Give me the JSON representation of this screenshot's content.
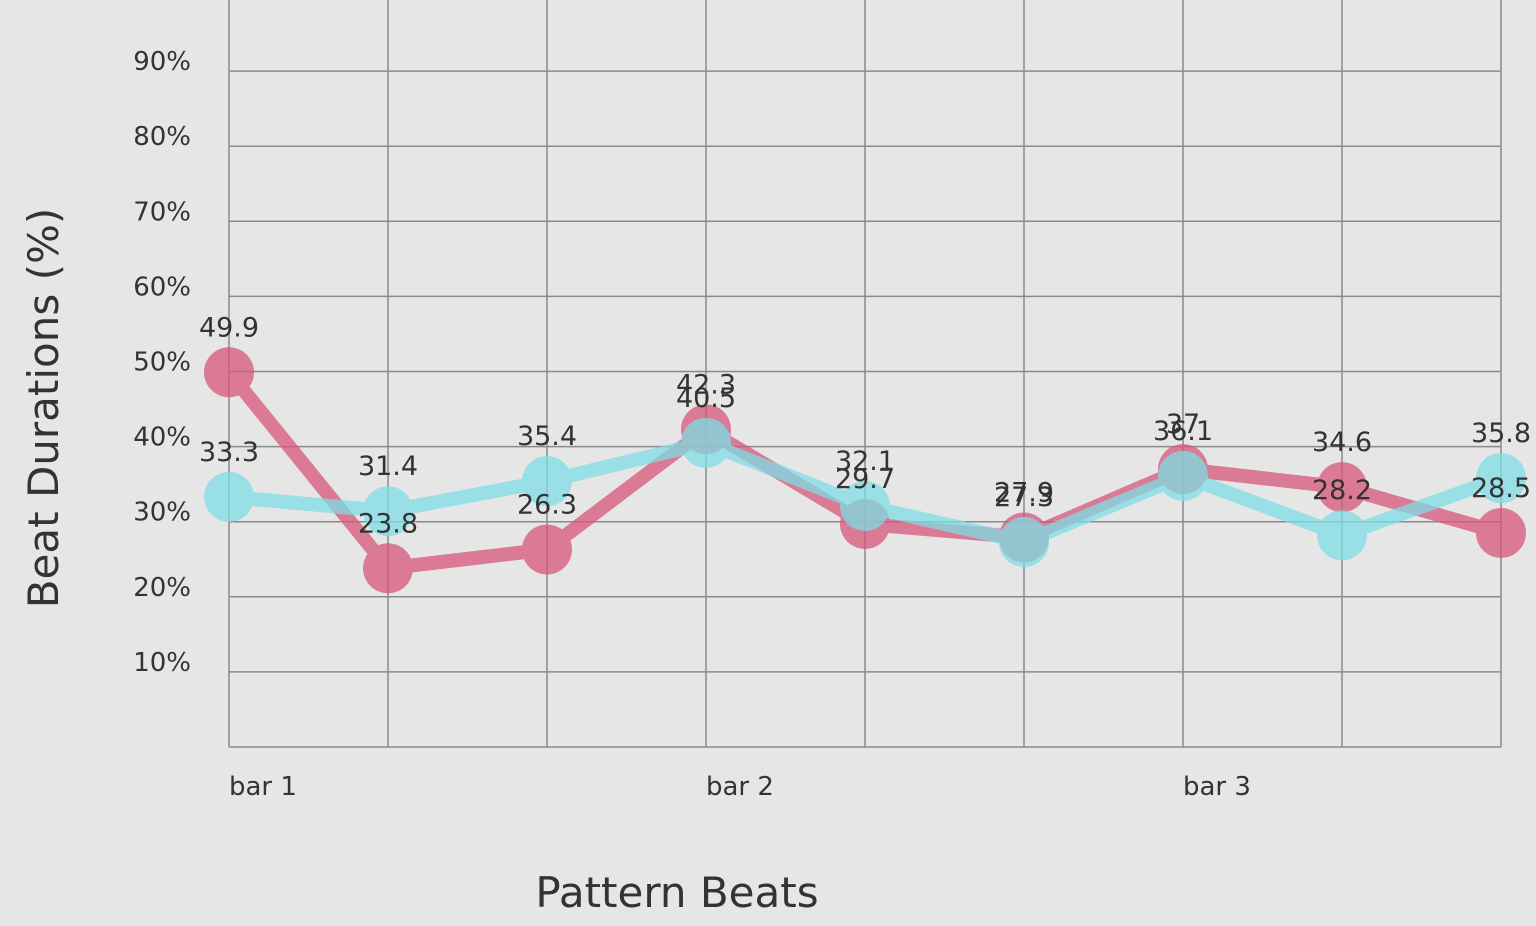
{
  "chart_data": {
    "type": "line",
    "xlabel": "Pattern Beats",
    "ylabel": "Beat Durations (%)",
    "y_ticks": [
      "10%",
      "20%",
      "30%",
      "40%",
      "50%",
      "60%",
      "70%",
      "80%",
      "90%"
    ],
    "ylim": [
      0,
      90
    ],
    "x": [
      1,
      2,
      3,
      4,
      5,
      6,
      7,
      8,
      9
    ],
    "x_tick_labels": [
      {
        "x": 1,
        "label": "bar 1"
      },
      {
        "x": 4,
        "label": "bar 2"
      },
      {
        "x": 7,
        "label": "bar 3"
      }
    ],
    "grid": true,
    "series": [
      {
        "color": "#d6567a",
        "values": [
          49.9,
          23.8,
          26.3,
          42.3,
          29.7,
          27.9,
          37,
          34.6,
          28.5
        ]
      },
      {
        "color": "#7fdde6",
        "values": [
          33.3,
          31.4,
          35.4,
          40.5,
          32.1,
          27.3,
          36.1,
          28.2,
          35.8
        ]
      }
    ]
  }
}
